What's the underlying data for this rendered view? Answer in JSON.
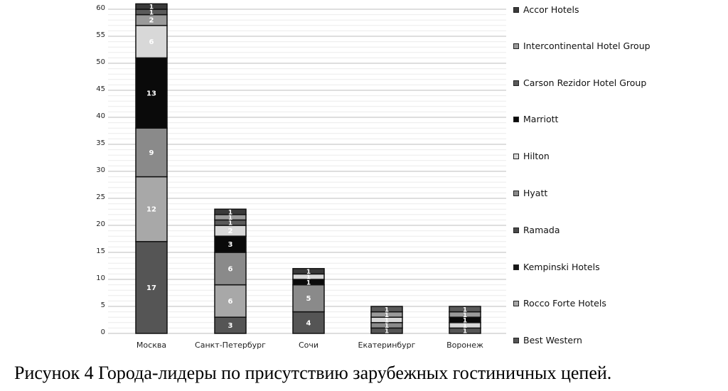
{
  "caption": "Рисунок 4  Города-лидеры по присутствию зарубежных гостиничных цепей.",
  "chart_data": {
    "type": "bar",
    "stacked": true,
    "title": "",
    "xlabel": "",
    "ylabel": "",
    "ylim": [
      0,
      60
    ],
    "yticks": [
      0,
      5,
      10,
      15,
      20,
      25,
      30,
      35,
      40,
      45,
      50,
      55,
      60
    ],
    "grid": true,
    "legend_position": "right",
    "categories": [
      "Москва",
      "Санкт-Петербург",
      "Сочи",
      "Екатеринбург",
      "Воронеж"
    ],
    "legend": [
      "Accor Hotels",
      "Intercontinental Hotel Group",
      "Carson Rezidor Hotel Group",
      "Marriott",
      "Hilton",
      "Hyatt",
      "Ramada",
      "Kempinski Hotels",
      "Rocco Forte Hotels",
      "Best Western"
    ],
    "legend_colors": [
      "#3a3a3a",
      "#9a9a9a",
      "#5a5a5a",
      "#0a0a0a",
      "#d8d8d8",
      "#8a8a8a",
      "#4a4a4a",
      "#161616",
      "#a8a8a8",
      "#555555"
    ],
    "stacks": [
      [
        {
          "v": 17,
          "c": "#555555"
        },
        {
          "v": 12,
          "c": "#a8a8a8"
        },
        {
          "v": 9,
          "c": "#8a8a8a"
        },
        {
          "v": 13,
          "c": "#0a0a0a"
        },
        {
          "v": 6,
          "c": "#d8d8d8"
        },
        {
          "v": 2,
          "c": "#9a9a9a"
        },
        {
          "v": 1,
          "c": "#5a5a5a"
        },
        {
          "v": 1,
          "c": "#3a3a3a"
        }
      ],
      [
        {
          "v": 3,
          "c": "#555555"
        },
        {
          "v": 6,
          "c": "#a8a8a8"
        },
        {
          "v": 6,
          "c": "#8a8a8a"
        },
        {
          "v": 3,
          "c": "#0a0a0a"
        },
        {
          "v": 2,
          "c": "#d8d8d8"
        },
        {
          "v": 1,
          "c": "#5a5a5a"
        },
        {
          "v": 1,
          "c": "#9a9a9a"
        },
        {
          "v": 1,
          "c": "#3a3a3a"
        }
      ],
      [
        {
          "v": 4,
          "c": "#555555"
        },
        {
          "v": 5,
          "c": "#8a8a8a"
        },
        {
          "v": 1,
          "c": "#0a0a0a"
        },
        {
          "v": 1,
          "c": "#d8d8d8"
        },
        {
          "v": 1,
          "c": "#3a3a3a"
        }
      ],
      [
        {
          "v": 1,
          "c": "#555555"
        },
        {
          "v": 1,
          "c": "#8a8a8a"
        },
        {
          "v": 1,
          "c": "#d8d8d8"
        },
        {
          "v": 1,
          "c": "#9a9a9a"
        },
        {
          "v": 1,
          "c": "#5a5a5a"
        }
      ],
      [
        {
          "v": 1,
          "c": "#555555"
        },
        {
          "v": 1,
          "c": "#d8d8d8"
        },
        {
          "v": 1,
          "c": "#0a0a0a"
        },
        {
          "v": 1,
          "c": "#9a9a9a"
        },
        {
          "v": 1,
          "c": "#5a5a5a"
        }
      ]
    ],
    "totals": [
      61,
      23,
      12,
      5,
      5
    ]
  }
}
